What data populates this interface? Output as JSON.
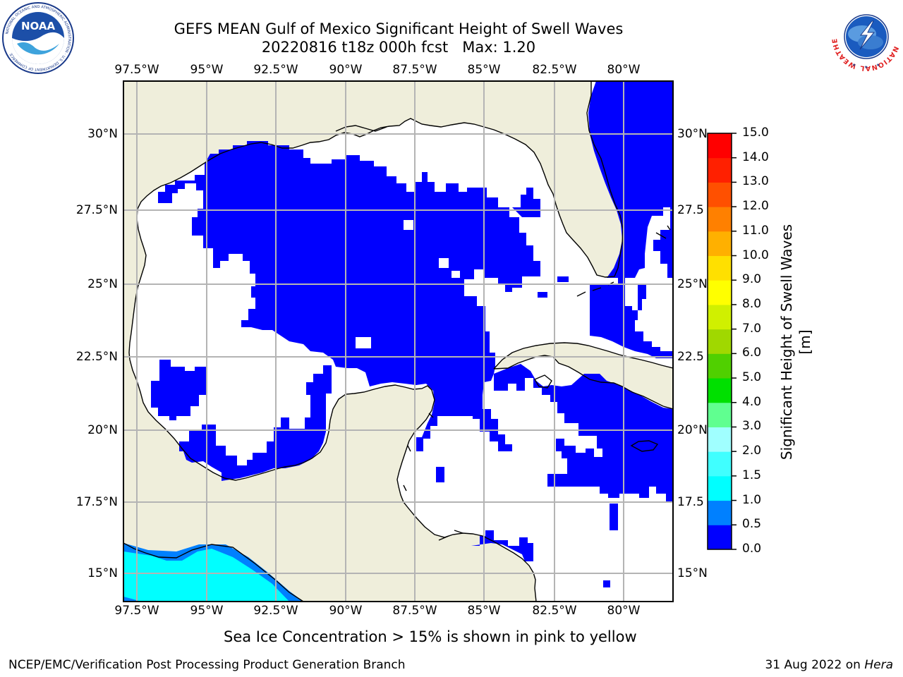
{
  "title": {
    "line1": "GEFS MEAN Gulf of Mexico Significant Height of Swell Waves",
    "line2": "20220816 t18z 000h fcst   Max: 1.20"
  },
  "axes": {
    "lon_labels": [
      "97.5°W",
      "95°W",
      "92.5°W",
      "90°W",
      "87.5°W",
      "85°W",
      "82.5°W",
      "80°W"
    ],
    "lat_labels_left": [
      "30°N",
      "27.5°N",
      "25°N",
      "22.5°N",
      "20°N",
      "17.5°N",
      "15°N"
    ],
    "lat_labels_right": [
      "30°N",
      "27.5",
      "25°N",
      "22.5",
      "20°N",
      "17.5",
      "15°N"
    ],
    "lon_range": [
      -98,
      -78.3
    ],
    "lat_range": [
      14.0,
      31.7
    ]
  },
  "colorbar": {
    "label": "Significant Height of Swell Waves [m]",
    "ticks": [
      "0.0",
      "0.5",
      "1.0",
      "1.5",
      "2.0",
      "3.0",
      "4.0",
      "5.0",
      "6.0",
      "7.0",
      "8.0",
      "9.0",
      "10.0",
      "11.0",
      "12.0",
      "13.0",
      "14.0",
      "15.0"
    ],
    "colors": [
      "#0000ff",
      "#0080ff",
      "#00ffff",
      "#40ffff",
      "#a0ffff",
      "#60ff90",
      "#00e000",
      "#50d000",
      "#a0d800",
      "#d0f000",
      "#ffff00",
      "#ffe000",
      "#ffb000",
      "#ff8000",
      "#ff5000",
      "#ff2000",
      "#ff0000"
    ]
  },
  "colors": {
    "land": "#efeedb",
    "ocean_no_data": "#ffffff",
    "swell_0_0_5": "#0000ff",
    "swell_0_5_1_0": "#0080ff",
    "swell_1_0_1_5": "#00ffff",
    "gridline": "#b4b4b4"
  },
  "note": "Sea Ice Concentration > 15% is shown in pink to yellow",
  "footer": {
    "left": "NCEP/EMC/Verification Post Processing Product Generation Branch",
    "right_prefix": "31 Aug 2022 on ",
    "right_system": "Hera"
  },
  "logos": {
    "left": "NOAA",
    "left_ring_text": "NATIONAL OCEANIC AND ATMOSPHERIC ADMINISTRATION · U.S. DEPARTMENT OF COMMERCE",
    "right_ring_text": "NATIONAL WEATHER SERVICE"
  }
}
